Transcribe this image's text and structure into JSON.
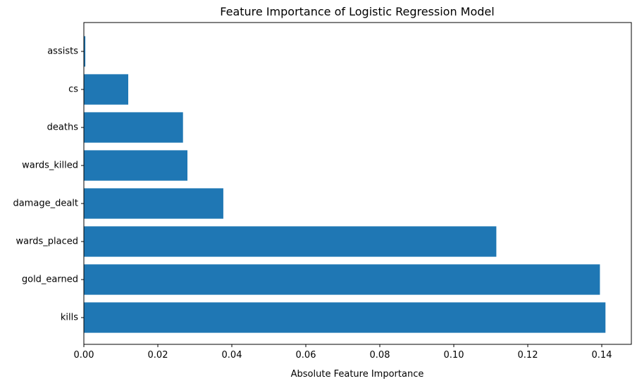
{
  "chart_data": {
    "type": "bar",
    "orientation": "horizontal",
    "title": "Feature Importance of Logistic Regression Model",
    "xlabel": "Absolute Feature Importance",
    "ylabel": "",
    "categories": [
      "kills",
      "gold_earned",
      "wards_placed",
      "damage_dealt",
      "wards_killed",
      "deaths",
      "cs",
      "assists"
    ],
    "values": [
      0.141,
      0.1395,
      0.1115,
      0.0377,
      0.028,
      0.0268,
      0.012,
      0.0004
    ],
    "xlim": [
      0,
      0.148
    ],
    "xticks": [
      0.0,
      0.02,
      0.04,
      0.06,
      0.08,
      0.1,
      0.12,
      0.14
    ],
    "xtick_labels": [
      "0.00",
      "0.02",
      "0.04",
      "0.06",
      "0.08",
      "0.10",
      "0.12",
      "0.14"
    ],
    "grid": false,
    "legend": "none",
    "colors": {
      "bar": "#1f77b4",
      "axis": "#000000",
      "background": "#ffffff"
    }
  }
}
